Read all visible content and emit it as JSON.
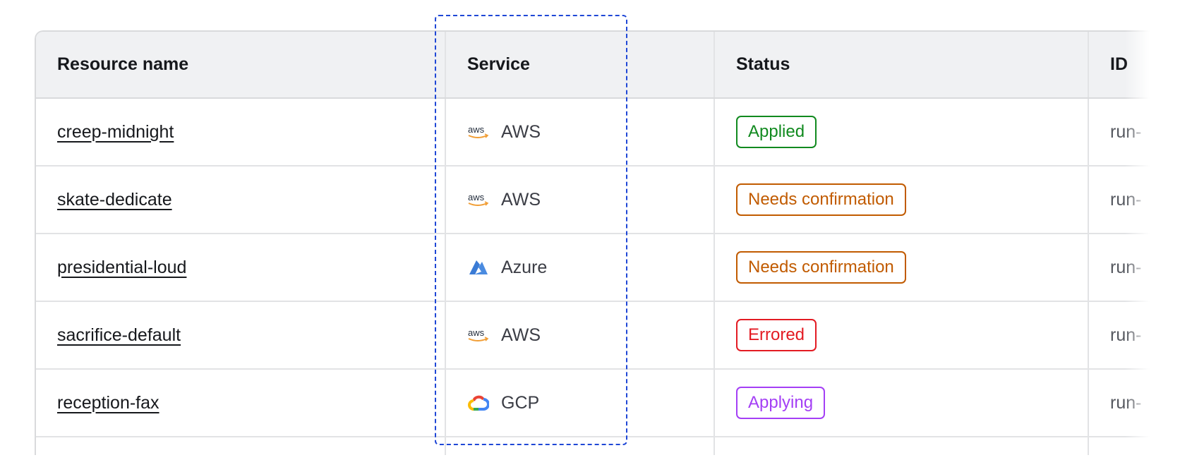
{
  "columns": [
    "Resource name",
    "Service",
    "Status",
    "ID"
  ],
  "rows": [
    {
      "name": "creep-midnight",
      "service": "AWS",
      "service_icon": "aws-icon",
      "status": "Applied",
      "status_color": "#118a1f",
      "id": "run-"
    },
    {
      "name": "skate-dedicate",
      "service": "AWS",
      "service_icon": "aws-icon",
      "status": "Needs confirmation",
      "status_color": "#c15b00",
      "id": "run-"
    },
    {
      "name": "presidential-loud",
      "service": "Azure",
      "service_icon": "azure-icon",
      "status": "Needs confirmation",
      "status_color": "#c15b00",
      "id": "run-"
    },
    {
      "name": "sacrifice-default",
      "service": "AWS",
      "service_icon": "aws-icon",
      "status": "Errored",
      "status_color": "#e31b23",
      "id": "run-"
    },
    {
      "name": "reception-fax",
      "service": "GCP",
      "service_icon": "gcp-icon",
      "status": "Applying",
      "status_color": "#a43ff5",
      "id": "run-"
    }
  ],
  "highlight_color": "#1f47d6"
}
